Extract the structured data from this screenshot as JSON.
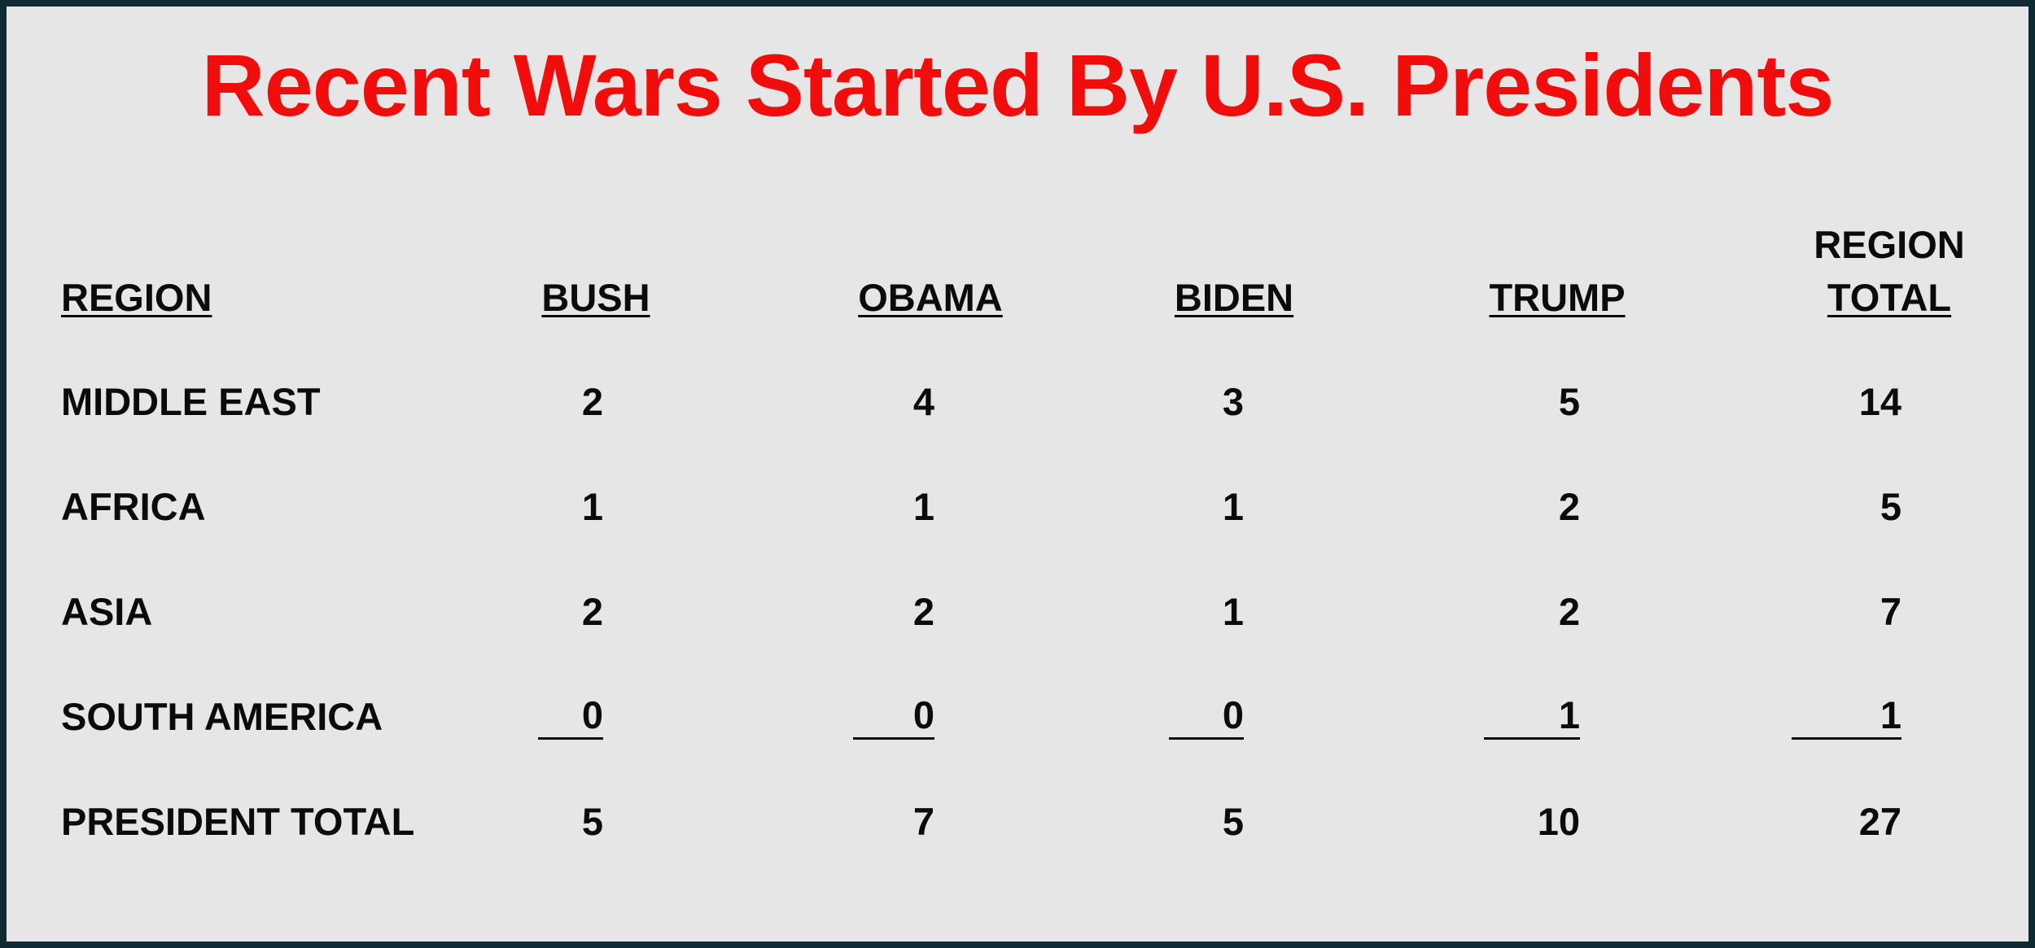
{
  "title": "Recent Wars Started By U.S. Presidents",
  "table": {
    "headers": {
      "region": "REGION",
      "bush": "BUSH",
      "obama": "OBAMA",
      "biden": "BIDEN",
      "trump": "TRUMP",
      "region_total_line1": "REGION",
      "region_total_line2": "TOTAL"
    },
    "rows": [
      {
        "region": "MIDDLE EAST",
        "bush": "2",
        "obama": "4",
        "biden": "3",
        "trump": "5",
        "total": "14"
      },
      {
        "region": "AFRICA",
        "bush": "1",
        "obama": "1",
        "biden": "1",
        "trump": "2",
        "total": "5"
      },
      {
        "region": "ASIA",
        "bush": "2",
        "obama": "2",
        "biden": "1",
        "trump": "2",
        "total": "7"
      },
      {
        "region": "SOUTH AMERICA",
        "bush": "0",
        "obama": "0",
        "biden": "0",
        "trump": "1",
        "total": "1"
      }
    ],
    "totals": {
      "label": "PRESIDENT TOTAL",
      "bush": "5",
      "obama": "7",
      "biden": "5",
      "trump": "10",
      "total": "27"
    }
  },
  "colors": {
    "title": "#f20d0d",
    "background": "#e6e6e6",
    "border": "#0f2a33",
    "text": "#0b0b0b"
  }
}
